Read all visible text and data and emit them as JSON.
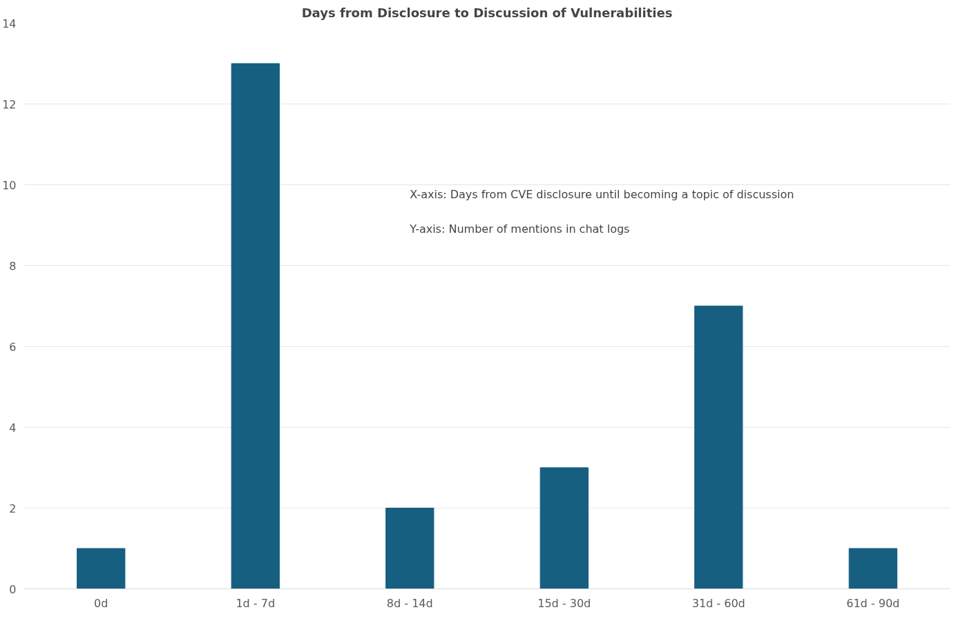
{
  "chart_data": {
    "type": "bar",
    "title": "Days from Disclosure to Discussion of Vulnerabilities",
    "categories": [
      "0d",
      "1d - 7d",
      "8d - 14d",
      "15d - 30d",
      "31d - 60d",
      "61d - 90d"
    ],
    "values": [
      1,
      13,
      2,
      3,
      7,
      1
    ],
    "color": "#165f80",
    "ylim": [
      0,
      14
    ],
    "yticks": [
      0,
      2,
      4,
      6,
      8,
      10,
      12,
      14
    ],
    "grid": "y",
    "annotations": [
      "X-axis: Days from CVE disclosure until becoming a topic of discussion",
      "Y-axis: Number of mentions in chat logs"
    ]
  }
}
